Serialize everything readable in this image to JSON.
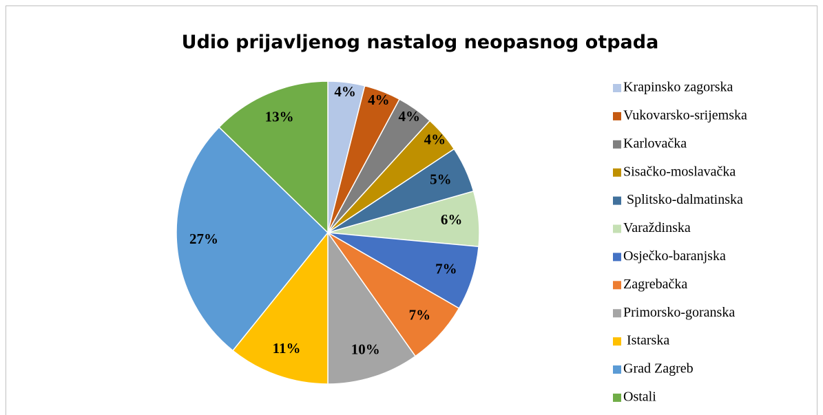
{
  "chart_data": {
    "type": "pie",
    "title": "Udio prijavljenog nastalog neopasnog otpada",
    "categories": [
      "Krapinsko zagorska",
      "Vukovarsko-srijemska",
      "Karlovačka",
      "Sisačko-moslavačka",
      " Splitsko-dalmatinska",
      "Varaždinska",
      "Osječko-baranjska",
      "Zagrebačka",
      "Primorsko-goranska",
      " Istarska",
      "Grad Zagreb",
      "Ostali"
    ],
    "values": [
      4,
      4,
      4,
      4,
      5,
      6,
      7,
      7,
      10,
      11,
      27,
      13
    ],
    "value_labels": [
      "4%",
      "4%",
      "4%",
      "4%",
      "5%",
      "6%",
      "7%",
      "7%",
      "10%",
      "11%",
      "27%",
      "13%"
    ],
    "colors": [
      "#b4c7e7",
      "#c55a11",
      "#7f7f7f",
      "#bf9000",
      "#41719c",
      "#c5e0b4",
      "#4472c4",
      "#ed7d31",
      "#a5a5a5",
      "#ffc000",
      "#5b9bd5",
      "#70ad47"
    ],
    "legend": "right"
  }
}
